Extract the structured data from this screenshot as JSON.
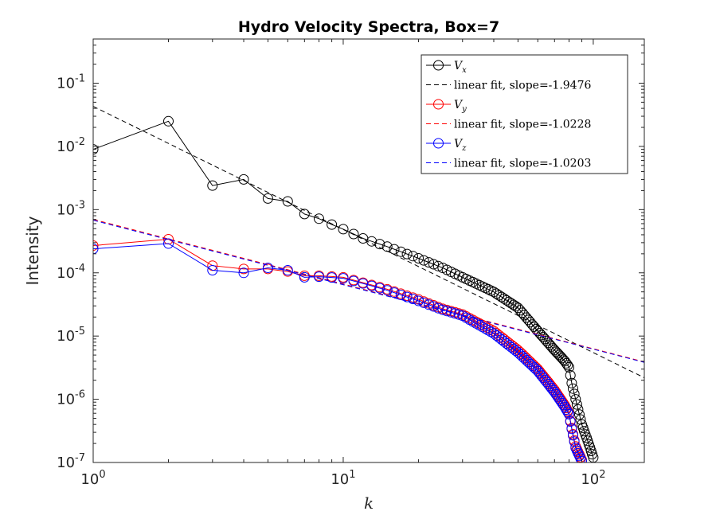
{
  "chart_data": {
    "type": "line",
    "title": "Hydro Velocity Spectra, Box=7",
    "xlabel": "k",
    "ylabel": "Intensity",
    "x_scale": "log",
    "y_scale": "log",
    "xlim": [
      1,
      160
    ],
    "ylim": [
      1e-07,
      0.5
    ],
    "x_ticks": [
      {
        "value": 1,
        "base": "10",
        "exp": "0"
      },
      {
        "value": 10,
        "base": "10",
        "exp": "1"
      },
      {
        "value": 100,
        "base": "10",
        "exp": "2"
      }
    ],
    "y_ticks": [
      {
        "value": 1e-07,
        "base": "10",
        "exp": "-7"
      },
      {
        "value": 1e-06,
        "base": "10",
        "exp": "-6"
      },
      {
        "value": 1e-05,
        "base": "10",
        "exp": "-5"
      },
      {
        "value": 0.0001,
        "base": "10",
        "exp": "-4"
      },
      {
        "value": 0.001,
        "base": "10",
        "exp": "-3"
      },
      {
        "value": 0.01,
        "base": "10",
        "exp": "-2"
      },
      {
        "value": 0.1,
        "base": "10",
        "exp": "-1"
      }
    ],
    "grid": false,
    "legend_position": "top-right",
    "series": [
      {
        "name": "V_x",
        "label_main": "V",
        "label_sub": "x",
        "color": "#000000",
        "marker": "circle",
        "anchors": [
          [
            1,
            0.009
          ],
          [
            2,
            0.025
          ],
          [
            3,
            0.0024
          ],
          [
            4,
            0.003
          ],
          [
            5,
            0.0015
          ],
          [
            6,
            0.00135
          ],
          [
            7,
            0.00085
          ],
          [
            8,
            0.00072
          ],
          [
            9,
            0.00058
          ],
          [
            10,
            0.00049
          ],
          [
            12,
            0.00035
          ],
          [
            15,
            0.00026
          ],
          [
            20,
            0.00017
          ],
          [
            25,
            0.00012
          ],
          [
            30,
            8.5e-05
          ],
          [
            40,
            5e-05
          ],
          [
            50,
            2.8e-05
          ],
          [
            60,
            1.2e-05
          ],
          [
            70,
            6e-06
          ],
          [
            77,
            4e-06
          ],
          [
            80,
            3.2e-06
          ],
          [
            82,
            1.8e-06
          ],
          [
            85,
            1e-06
          ],
          [
            90,
            4e-07
          ],
          [
            95,
            2.2e-07
          ],
          [
            100,
            1.2e-07
          ]
        ]
      },
      {
        "name": "linear fit, slope=-1.9476",
        "color": "#000000",
        "dash": true,
        "line": {
          "slope": -1.9476,
          "intercept_at_1": 0.043
        }
      },
      {
        "name": "V_y",
        "label_main": "V",
        "label_sub": "y",
        "color": "#ff0000",
        "marker": "circle",
        "anchors": [
          [
            1,
            0.00027
          ],
          [
            2,
            0.00034
          ],
          [
            3,
            0.00013
          ],
          [
            4,
            0.000115
          ],
          [
            5,
            0.000115
          ],
          [
            6,
            0.000105
          ],
          [
            7,
            9e-05
          ],
          [
            8,
            9e-05
          ],
          [
            10,
            8.5e-05
          ],
          [
            12,
            7e-05
          ],
          [
            15,
            5.5e-05
          ],
          [
            20,
            3.8e-05
          ],
          [
            25,
            2.7e-05
          ],
          [
            30,
            2.2e-05
          ],
          [
            40,
            1.2e-05
          ],
          [
            50,
            6e-06
          ],
          [
            60,
            3e-06
          ],
          [
            70,
            1.4e-06
          ],
          [
            77,
            8e-07
          ],
          [
            80,
            6e-07
          ],
          [
            82,
            3.5e-07
          ],
          [
            85,
            1.8e-07
          ],
          [
            90,
            1.1e-07
          ]
        ]
      },
      {
        "name": "linear fit, slope=-1.0228",
        "color": "#ff0000",
        "dash": true,
        "line": {
          "slope": -1.0228,
          "intercept_at_1": 0.0007
        }
      },
      {
        "name": "V_z",
        "label_main": "V",
        "label_sub": "z",
        "color": "#0000ff",
        "marker": "circle",
        "anchors": [
          [
            1,
            0.00024
          ],
          [
            2,
            0.00029
          ],
          [
            3,
            0.00011
          ],
          [
            4,
            0.0001
          ],
          [
            5,
            0.00012
          ],
          [
            6,
            0.00011
          ],
          [
            7,
            8.5e-05
          ],
          [
            8,
            8.7e-05
          ],
          [
            10,
            8.2e-05
          ],
          [
            12,
            6.8e-05
          ],
          [
            15,
            5.3e-05
          ],
          [
            20,
            3.6e-05
          ],
          [
            25,
            2.6e-05
          ],
          [
            30,
            2.1e-05
          ],
          [
            40,
            1.1e-05
          ],
          [
            50,
            5.5e-06
          ],
          [
            60,
            2.8e-06
          ],
          [
            70,
            1.3e-06
          ],
          [
            77,
            7.5e-07
          ],
          [
            80,
            5.8e-07
          ],
          [
            82,
            3.4e-07
          ],
          [
            85,
            1.7e-07
          ],
          [
            90,
            1.05e-07
          ]
        ]
      },
      {
        "name": "linear fit, slope=-1.0203",
        "color": "#0000ff",
        "dash": true,
        "line": {
          "slope": -1.0203,
          "intercept_at_1": 0.00068
        }
      }
    ]
  }
}
